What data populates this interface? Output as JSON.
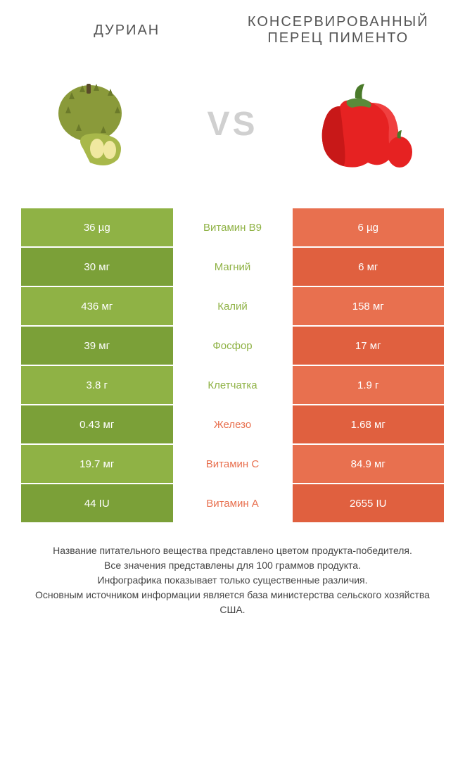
{
  "colors": {
    "left": "#8fb245",
    "left_alt": "#7ba038",
    "right": "#e8704f",
    "right_alt": "#e0603f",
    "vs": "#d0d0d0",
    "title": "#555555"
  },
  "left_title": "ДУРИАН",
  "right_title": "КОНСЕРВИРОВАННЫЙ ПЕРЕЦ ПИМЕНТО",
  "vs_label": "VS",
  "rows": [
    {
      "label": "Витамин B9",
      "left": "36 µg",
      "right": "6 µg",
      "winner": "left"
    },
    {
      "label": "Магний",
      "left": "30 мг",
      "right": "6 мг",
      "winner": "left"
    },
    {
      "label": "Калий",
      "left": "436 мг",
      "right": "158 мг",
      "winner": "left"
    },
    {
      "label": "Фосфор",
      "left": "39 мг",
      "right": "17 мг",
      "winner": "left"
    },
    {
      "label": "Клетчатка",
      "left": "3.8 г",
      "right": "1.9 г",
      "winner": "left"
    },
    {
      "label": "Железо",
      "left": "0.43 мг",
      "right": "1.68 мг",
      "winner": "right"
    },
    {
      "label": "Витамин C",
      "left": "19.7 мг",
      "right": "84.9 мг",
      "winner": "right"
    },
    {
      "label": "Витамин A",
      "left": "44 IU",
      "right": "2655 IU",
      "winner": "right"
    }
  ],
  "footer_lines": [
    "Название питательного вещества представлено цветом продукта-победителя.",
    "Все значения представлены для 100 граммов продукта.",
    "Инфографика показывает только существенные различия.",
    "Основным источником информации является база министерства сельского хозяйства США."
  ]
}
